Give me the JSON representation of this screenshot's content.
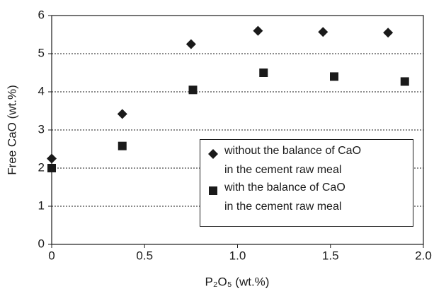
{
  "chart_data": {
    "type": "scatter",
    "x_label": "P₂O₅ (wt.%)",
    "y_label": "Free CaO (wt.%)",
    "xlim": [
      0,
      2.0
    ],
    "ylim": [
      0,
      6
    ],
    "xticks": [
      0,
      0.5,
      {
        "value": 1.0,
        "label": "1.0"
      },
      1.5,
      {
        "value": 2.0,
        "label": "2.0"
      }
    ],
    "yticks": [
      0,
      1,
      2,
      3,
      4,
      5,
      6
    ],
    "grid": true,
    "legend": "lower right",
    "series": [
      {
        "name": "without the balance of CaO\nin the cement raw meal",
        "marker": "diamond",
        "color": "#1a1a1a",
        "x": [
          0,
          0.38,
          0.75,
          1.11,
          1.46,
          1.81
        ],
        "values": [
          2.25,
          3.42,
          5.25,
          5.6,
          5.57,
          5.55
        ]
      },
      {
        "name": "with the balance of CaO\nin the cement raw meal",
        "marker": "square",
        "color": "#1a1a1a",
        "x": [
          0,
          0.38,
          0.76,
          1.14,
          1.52,
          1.9
        ],
        "values": [
          2.0,
          2.58,
          4.05,
          4.5,
          4.4,
          4.27
        ]
      }
    ]
  }
}
